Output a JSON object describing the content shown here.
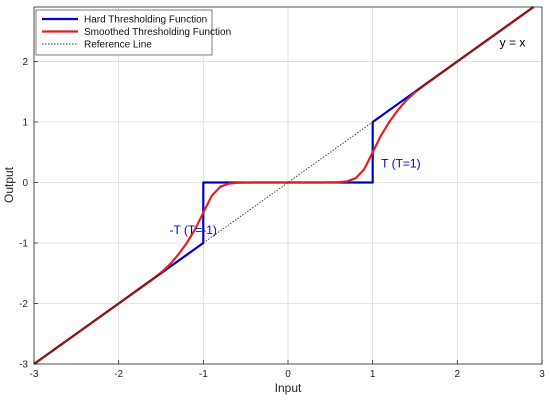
{
  "chart_data": {
    "type": "line",
    "title": "",
    "xlabel": "Input",
    "ylabel": "Output",
    "xlim": [
      -3,
      3
    ],
    "ylim": [
      -3,
      2.9
    ],
    "xticks": [
      -3,
      -2,
      -1,
      0,
      1,
      2,
      3
    ],
    "yticks": [
      -3,
      -2,
      -1,
      0,
      1,
      2
    ],
    "grid": true,
    "legend": {
      "placement": "top-left",
      "entries": [
        "Hard Thresholding Function",
        "Smoothed Thresholding Function",
        "Reference Line"
      ]
    },
    "series": [
      {
        "name": "Hard Thresholding Function",
        "color": "#0000cc",
        "style": "solid",
        "x": [
          -3,
          -1,
          -1,
          1,
          1,
          2.9
        ],
        "y": [
          -3,
          -1,
          0,
          0,
          1,
          2.9
        ]
      },
      {
        "name": "Smoothed Thresholding Function",
        "color": "#dd2222",
        "style": "solid",
        "x": [
          -3,
          -2,
          -1.6,
          -1.5,
          -1.4,
          -1.3,
          -1.2,
          -1.1,
          -1.0,
          -0.9,
          -0.8,
          -0.7,
          -0.6,
          -0.4,
          0,
          0.4,
          0.6,
          0.7,
          0.8,
          0.9,
          1.0,
          1.1,
          1.2,
          1.3,
          1.4,
          1.5,
          1.6,
          2,
          2.9
        ],
        "y": [
          -3,
          -2,
          -1.6,
          -1.49,
          -1.36,
          -1.2,
          -1.01,
          -0.78,
          -0.5,
          -0.22,
          -0.07,
          -0.02,
          -0.005,
          0,
          0,
          0,
          0.005,
          0.02,
          0.07,
          0.22,
          0.5,
          0.78,
          1.01,
          1.2,
          1.36,
          1.49,
          1.6,
          2,
          2.9
        ]
      },
      {
        "name": "Reference Line",
        "color": "#333333",
        "style": "dotted",
        "x": [
          -1,
          1
        ],
        "y": [
          -1,
          1
        ]
      },
      {
        "name": "",
        "color": "#8b1a1a",
        "style": "solid",
        "x": [
          -3,
          -1.5
        ],
        "y": [
          -3,
          -1.5
        ]
      },
      {
        "name": "",
        "color": "#8b1a1a",
        "style": "solid",
        "x": [
          1.5,
          2.9
        ],
        "y": [
          1.5,
          2.9
        ]
      }
    ],
    "annotations": [
      {
        "text": "y = x",
        "x": 2.5,
        "y": 2.25,
        "color": "#000000"
      },
      {
        "text": "T (T=1)",
        "x": 1.1,
        "y": 0.25,
        "color": "#0000cc"
      },
      {
        "text": "-T (T=-1)",
        "x": -1.4,
        "y": -0.85,
        "color": "#0000cc"
      }
    ]
  }
}
